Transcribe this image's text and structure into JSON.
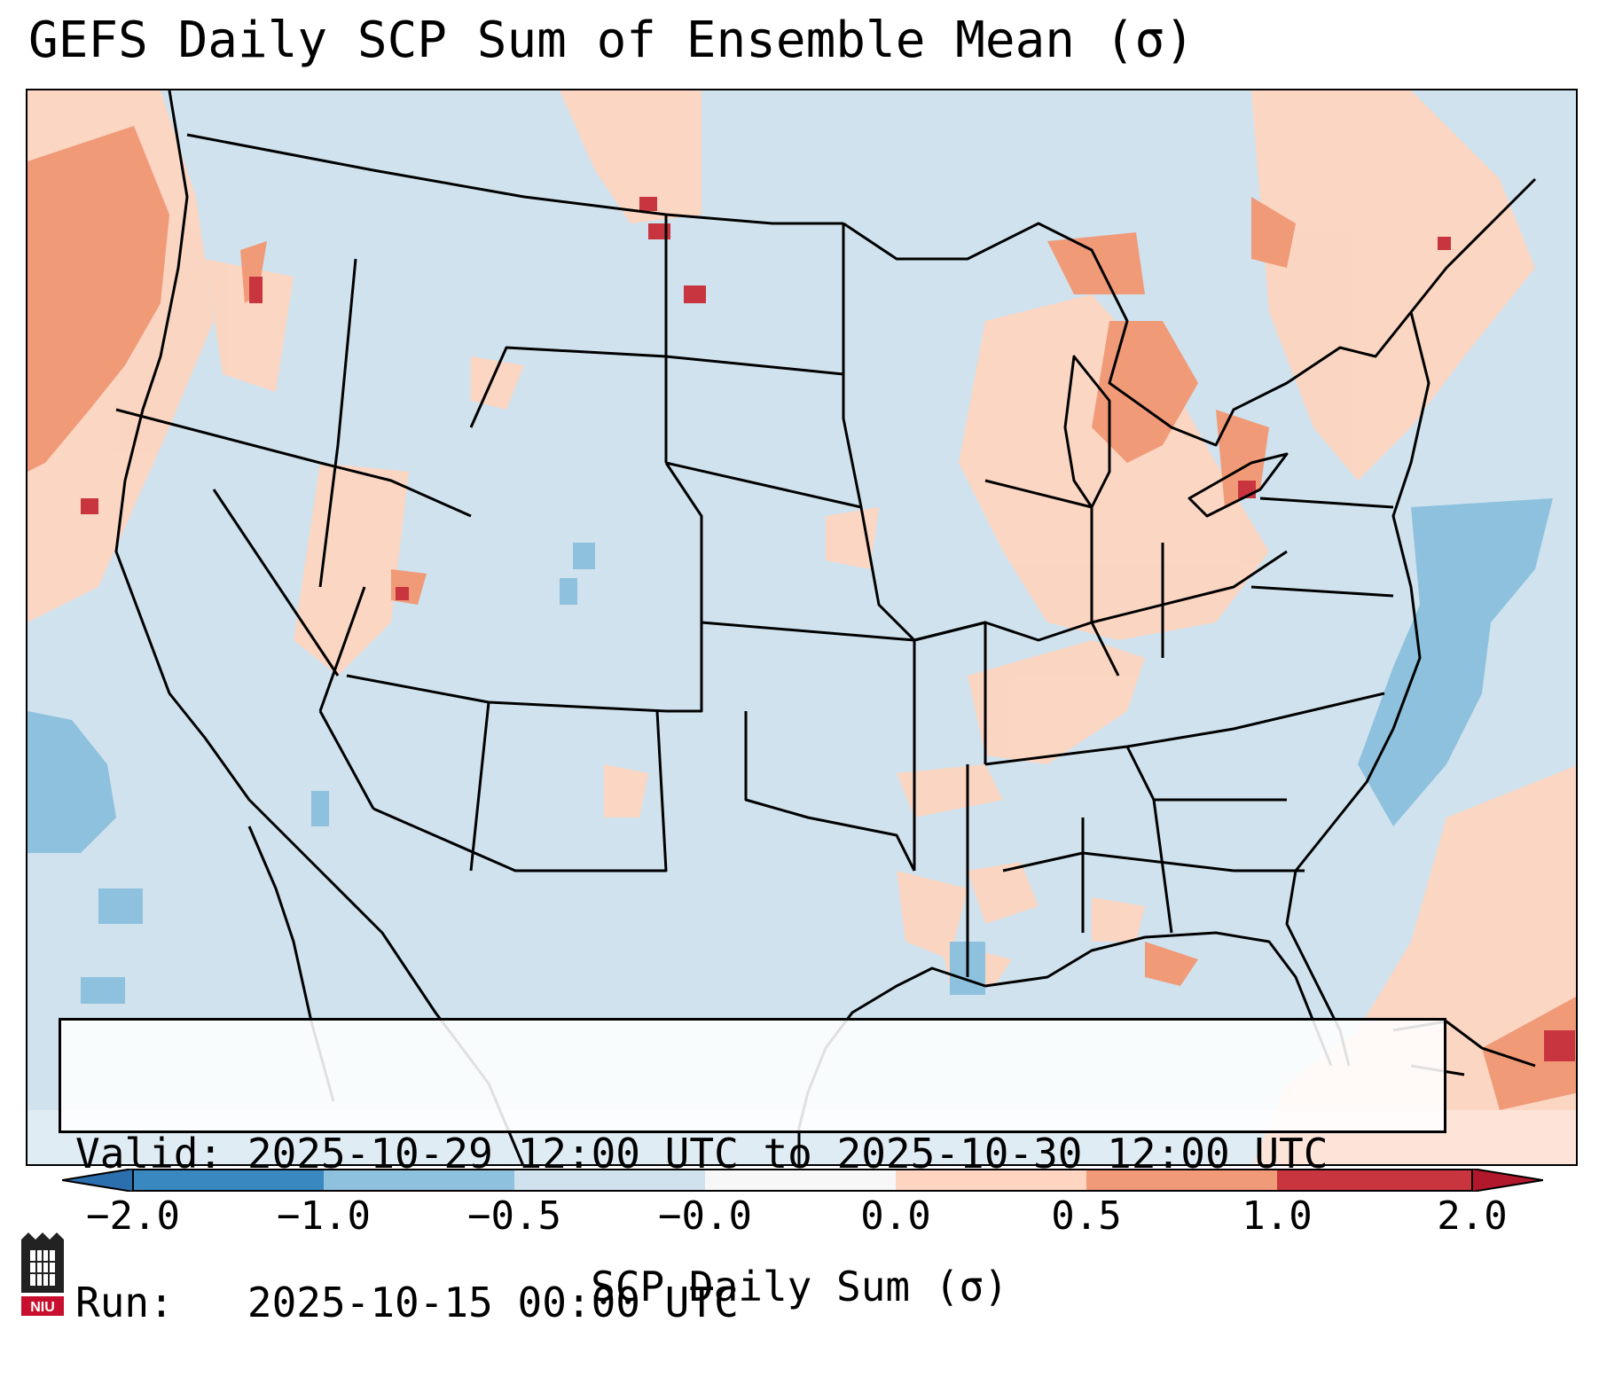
{
  "title": "GEFS Daily SCP Sum of Ensemble Mean (σ)",
  "info": {
    "valid_label": "Valid:",
    "valid_value": "2025-10-29 12:00 UTC to 2025-10-30 12:00 UTC",
    "run_label": "Run:",
    "run_value": "2025-10-15 00:00 UTC"
  },
  "colorbar": {
    "label": "SCP Daily Sum (σ)",
    "ticks": [
      "−2.0",
      "−1.0",
      "−0.5",
      "−0.0",
      "0.0",
      "0.5",
      "1.0",
      "2.0"
    ],
    "colors": [
      "#3a88c0",
      "#8ec1dd",
      "#cfe2ee",
      "#f7f7f7",
      "#fdd5c0",
      "#f09a78",
      "#c8353f"
    ],
    "extend_low_color": "#2c6fae",
    "extend_high_color": "#b2182b"
  },
  "colors": {
    "background_bin": "#cfe2ee",
    "light_positive_bin": "#fdd5c0",
    "moderate_positive_bin": "#f09a78",
    "strong_positive_bin": "#c8353f",
    "light_negative_bin": "#8ec1dd",
    "border": "#000000"
  },
  "logo": {
    "text": "NIU",
    "color": "#c8102e"
  }
}
